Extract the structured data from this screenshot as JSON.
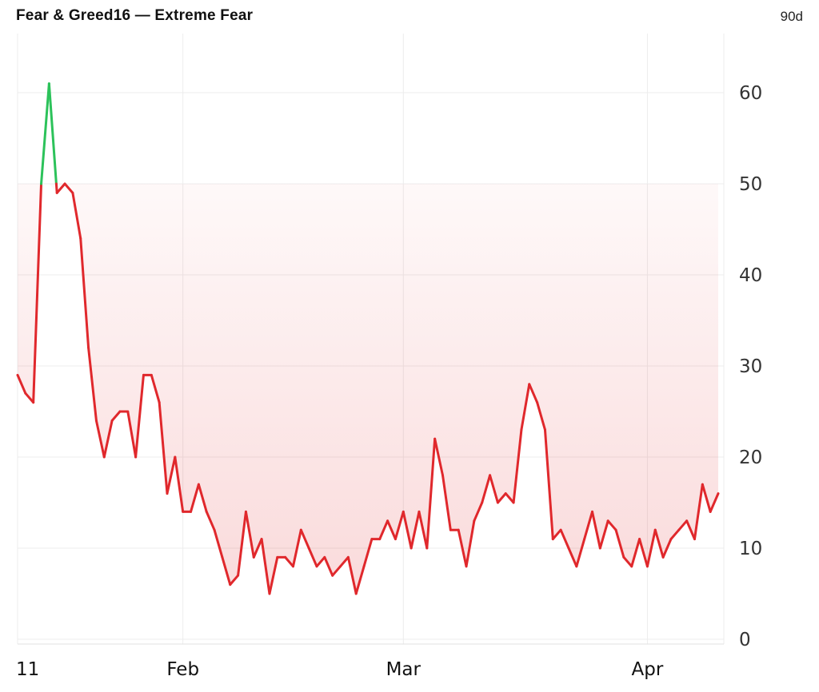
{
  "header": {
    "title": "Fear & Greed16 — Extreme Fear",
    "range": "90d"
  },
  "colors": {
    "fear": "#e0282c",
    "greed": "#2cc25a",
    "fill": "#e0282c",
    "grid": "#ececec"
  },
  "chart_data": {
    "type": "line",
    "title": "Fear & Greed16 — Extreme Fear",
    "xlabel": "",
    "ylabel": "",
    "ylim": [
      0,
      65
    ],
    "yticks": [
      0,
      10,
      20,
      30,
      40,
      50,
      60
    ],
    "threshold": 50,
    "xticks": [
      {
        "label": "11",
        "index": 0
      },
      {
        "label": "Feb",
        "index": 21
      },
      {
        "label": "Mar",
        "index": 49
      },
      {
        "label": "Apr",
        "index": 80
      }
    ],
    "grid": true,
    "values": [
      29,
      27,
      26,
      50,
      61,
      49,
      50,
      49,
      44,
      32,
      24,
      20,
      24,
      25,
      25,
      20,
      29,
      29,
      26,
      16,
      20,
      14,
      14,
      17,
      14,
      12,
      9,
      6,
      7,
      14,
      9,
      11,
      5,
      9,
      9,
      8,
      12,
      10,
      8,
      9,
      7,
      8,
      9,
      5,
      8,
      11,
      11,
      13,
      11,
      14,
      10,
      14,
      10,
      22,
      18,
      12,
      12,
      8,
      13,
      15,
      18,
      15,
      16,
      15,
      23,
      28,
      26,
      23,
      11,
      12,
      10,
      8,
      11,
      14,
      10,
      13,
      12,
      9,
      8,
      11,
      8,
      12,
      9,
      11,
      12,
      13,
      11,
      17,
      14,
      16
    ]
  }
}
